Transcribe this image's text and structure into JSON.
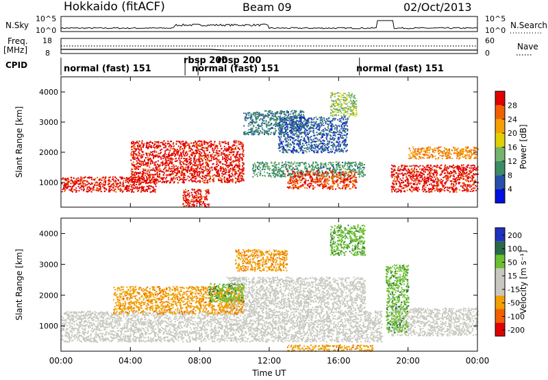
{
  "header": {
    "station": "Hokkaido (fitACF)",
    "beam": "Beam 09",
    "date": "02/Oct/2013"
  },
  "noise_panel": {
    "left_label": "N.Sky",
    "right_label": "N.Search",
    "ticks": [
      "10^5",
      "10^0"
    ]
  },
  "freq_panel": {
    "left_label_line1": "Freq.",
    "left_label_line2": "[MHz]",
    "left_ticks": [
      "18",
      "8"
    ],
    "right_ticks": [
      "60",
      "0"
    ],
    "right_label": "Nave"
  },
  "cpid_panel": {
    "label": "CPID",
    "segments": [
      {
        "label": "normal (fast) 151"
      },
      {
        "label": "rbsp 200"
      },
      {
        "label": "normal (fast) 151"
      },
      {
        "label": "rbsp 200"
      },
      {
        "label": "normal (fast) 151"
      }
    ]
  },
  "x_axis": {
    "label": "Time UT",
    "ticks": [
      "00:00",
      "04:00",
      "08:00",
      "12:00",
      "16:00",
      "20:00",
      "00:00"
    ]
  },
  "colors": {
    "power": [
      "#0010e0",
      "#2850a8",
      "#3c8c64",
      "#74b46c",
      "#e0d000",
      "#f4a000",
      "#f06000",
      "#e00000"
    ],
    "velocity": [
      "#2030c0",
      "#2a6a48",
      "#6cc030",
      "#c8c8c0",
      "#c8c8c0",
      "#f0a000",
      "#f06000",
      "#e00000"
    ]
  },
  "chart_data": [
    {
      "type": "heatmap",
      "name": "power",
      "ylabel": "Slant Range [km]",
      "xlabel": "",
      "x_ticks": [
        "00:00",
        "04:00",
        "08:00",
        "12:00",
        "16:00",
        "20:00",
        "00:00"
      ],
      "y_ticks": [
        "1000",
        "2000",
        "3000",
        "4000"
      ],
      "xlim_hours": [
        0,
        24
      ],
      "ylim_km": [
        180,
        4500
      ],
      "colorbar": {
        "label": "Power [dB]",
        "ticks": [
          "4",
          "8",
          "12",
          "16",
          "20",
          "24",
          "28"
        ],
        "range": [
          0,
          30
        ]
      },
      "regions": [
        {
          "t0": 0.0,
          "t1": 5.5,
          "r0": 700,
          "r1": 1200,
          "level": 28
        },
        {
          "t0": 4.0,
          "t1": 10.5,
          "r0": 1000,
          "r1": 2400,
          "level": 28
        },
        {
          "t0": 7.0,
          "t1": 8.5,
          "r0": 200,
          "r1": 800,
          "level": 28
        },
        {
          "t0": 10.5,
          "t1": 14.0,
          "r0": 2600,
          "r1": 3400,
          "level": 8
        },
        {
          "t0": 12.5,
          "t1": 16.5,
          "r0": 2000,
          "r1": 3200,
          "level": 6
        },
        {
          "t0": 11.0,
          "t1": 17.5,
          "r0": 1200,
          "r1": 1700,
          "level": 10
        },
        {
          "t0": 13.0,
          "t1": 17.0,
          "r0": 800,
          "r1": 1400,
          "level": 26
        },
        {
          "t0": 15.5,
          "t1": 17.0,
          "r0": 3200,
          "r1": 4000,
          "level": 14
        },
        {
          "t0": 19.0,
          "t1": 24.0,
          "r0": 700,
          "r1": 1600,
          "level": 28
        },
        {
          "t0": 20.0,
          "t1": 24.0,
          "r0": 1800,
          "r1": 2200,
          "level": 22
        }
      ]
    },
    {
      "type": "heatmap",
      "name": "velocity",
      "ylabel": "Slant Range [km]",
      "xlabel": "Time UT",
      "x_ticks": [
        "00:00",
        "04:00",
        "08:00",
        "12:00",
        "16:00",
        "20:00",
        "00:00"
      ],
      "y_ticks": [
        "1000",
        "2000",
        "3000",
        "4000"
      ],
      "xlim_hours": [
        0,
        24
      ],
      "ylim_km": [
        180,
        4500
      ],
      "colorbar": {
        "label": "Velocity [m s⁻¹]",
        "ticks": [
          "200",
          "100",
          "50",
          "15",
          "-15",
          "-50",
          "-100",
          "-200"
        ],
        "range": [
          -250,
          250
        ]
      },
      "regions": [
        {
          "t0": 0.0,
          "t1": 18.5,
          "r0": 500,
          "r1": 1500,
          "level": 0
        },
        {
          "t0": 9.5,
          "t1": 17.5,
          "r0": 1500,
          "r1": 2600,
          "level": 0
        },
        {
          "t0": 3.0,
          "t1": 10.5,
          "r0": 1400,
          "r1": 2300,
          "level": -40
        },
        {
          "t0": 10.0,
          "t1": 13.0,
          "r0": 2800,
          "r1": 3500,
          "level": -40
        },
        {
          "t0": 8.5,
          "t1": 10.5,
          "r0": 1800,
          "r1": 2400,
          "level": 40
        },
        {
          "t0": 19.0,
          "t1": 24.0,
          "r0": 700,
          "r1": 1600,
          "level": 0
        },
        {
          "t0": 18.7,
          "t1": 20.0,
          "r0": 800,
          "r1": 3000,
          "level": 40
        },
        {
          "t0": 15.5,
          "t1": 17.5,
          "r0": 3300,
          "r1": 4300,
          "level": 40
        },
        {
          "t0": 13.0,
          "t1": 18.0,
          "r0": 200,
          "r1": 400,
          "level": -40
        }
      ]
    }
  ]
}
